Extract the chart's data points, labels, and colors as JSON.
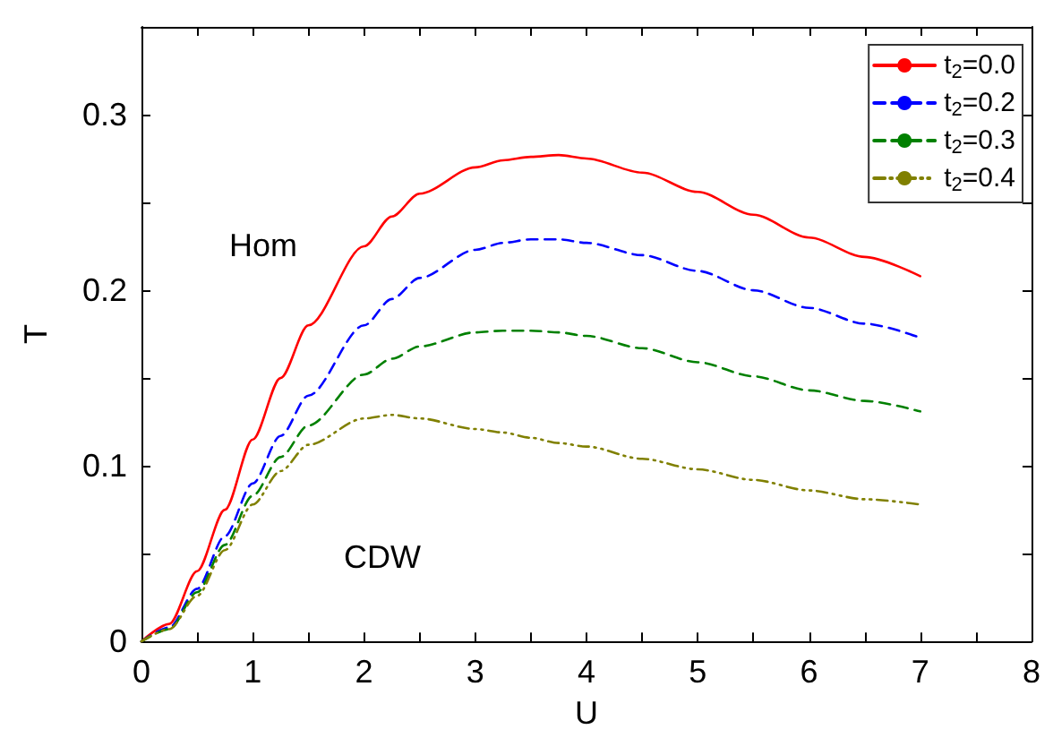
{
  "chart_data": {
    "type": "line",
    "xlabel": "U",
    "ylabel": "T",
    "xlim": [
      0,
      8
    ],
    "ylim": [
      0,
      0.35
    ],
    "xticks": [
      0,
      {
        "value": 0.5,
        "label": null
      },
      1,
      {
        "value": 1.5,
        "label": null
      },
      2,
      {
        "value": 2.5,
        "label": null
      },
      3,
      {
        "value": 3.5,
        "label": null
      },
      4,
      {
        "value": 4.5,
        "label": null
      },
      5,
      {
        "value": 5.5,
        "label": null
      },
      6,
      {
        "value": 6.5,
        "label": null
      },
      7,
      {
        "value": 7.5,
        "label": null
      },
      8
    ],
    "yticks": [
      0,
      {
        "value": 0.05,
        "label": null
      },
      0.1,
      {
        "value": 0.15,
        "label": null
      },
      0.2,
      {
        "value": 0.25,
        "label": null
      },
      0.3
    ],
    "grid": false,
    "legend": "top right",
    "marker": "none",
    "annotations": [
      "Hom",
      "CDW"
    ],
    "x": [
      0,
      0.25,
      0.5,
      0.75,
      1,
      1.25,
      1.5,
      2,
      2.25,
      2.5,
      3,
      3.25,
      3.5,
      3.75,
      4,
      4.5,
      5,
      5.5,
      6,
      6.5,
      7
    ],
    "series": [
      {
        "name": "t$_{2}$=0.0",
        "color": "#ff0000",
        "line_style": "solid",
        "values": [
          0,
          0.01,
          0.04,
          0.075,
          0.115,
          0.15,
          0.18,
          0.225,
          0.242,
          0.255,
          0.27,
          0.274,
          0.276,
          0.277,
          0.275,
          0.267,
          0.256,
          0.243,
          0.23,
          0.219,
          0.208
        ]
      },
      {
        "name": "t$_{2}$=0.2",
        "color": "#0000ff",
        "line_style": "dashed",
        "values": [
          0,
          0.008,
          0.03,
          0.06,
          0.09,
          0.117,
          0.14,
          0.18,
          0.195,
          0.207,
          0.223,
          0.227,
          0.229,
          0.229,
          0.227,
          0.22,
          0.211,
          0.2,
          0.19,
          0.181,
          0.173
        ]
      },
      {
        "name": "t$_{2}$=0.3",
        "color": "#008000",
        "line_style": "dashed",
        "values": [
          0,
          0.007,
          0.028,
          0.055,
          0.083,
          0.105,
          0.123,
          0.152,
          0.161,
          0.168,
          0.176,
          0.177,
          0.177,
          0.176,
          0.174,
          0.167,
          0.159,
          0.151,
          0.143,
          0.137,
          0.131
        ]
      },
      {
        "name": "t$_{2}$=0.4",
        "color": "#808000",
        "line_style": "dotted",
        "values": [
          0,
          0.007,
          0.026,
          0.052,
          0.078,
          0.097,
          0.112,
          0.127,
          0.129,
          0.127,
          0.121,
          0.119,
          0.116,
          0.113,
          0.111,
          0.104,
          0.098,
          0.092,
          0.086,
          0.081,
          0.078
        ]
      }
    ]
  }
}
